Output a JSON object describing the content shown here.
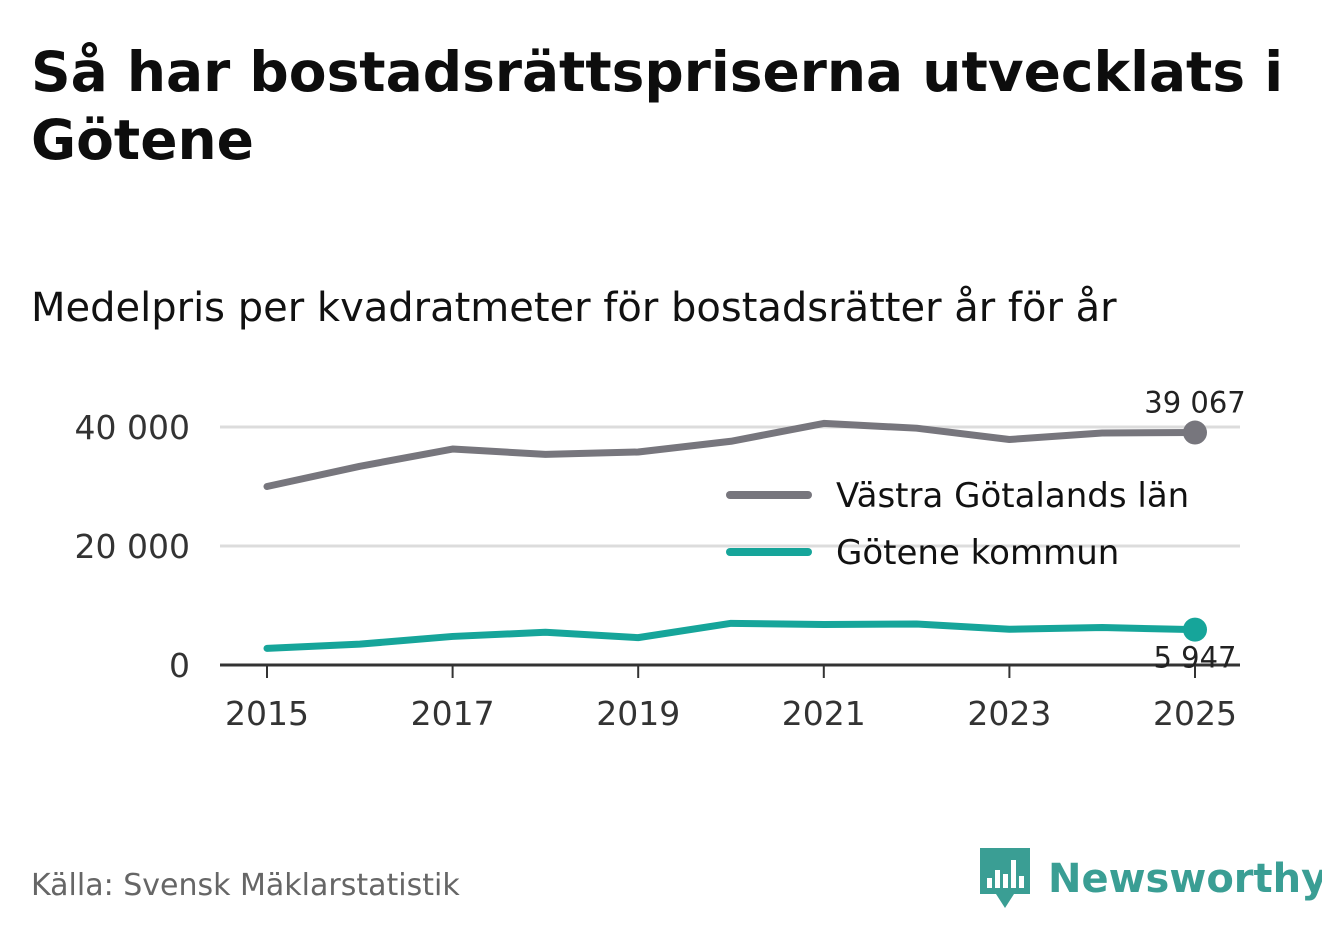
{
  "title": "Så har bostadsrättspriserna utvecklats i Götene",
  "subtitle": "Medelpris per kvadratmeter för bostadsrätter år för år",
  "source": "Källa: Svensk Mäklarstatistik",
  "brand": {
    "name": "Newsworthy",
    "icon": "newsworthy-logo-icon",
    "color": "#3a9e94"
  },
  "chart_data": {
    "type": "line",
    "x": [
      2015,
      2016,
      2017,
      2018,
      2019,
      2020,
      2021,
      2022,
      2023,
      2024,
      2025
    ],
    "x_tick_labels": [
      "2015",
      "2017",
      "2019",
      "2021",
      "2023",
      "2025"
    ],
    "x_ticks": [
      2015,
      2017,
      2019,
      2021,
      2023,
      2025
    ],
    "y_ticks": [
      0,
      20000,
      40000
    ],
    "y_tick_labels": [
      "0",
      "20 000",
      "40 000"
    ],
    "ylim": [
      0,
      40000
    ],
    "grid": true,
    "legend_position": "right-middle",
    "series": [
      {
        "name": "Västra Götalands län",
        "color": "#77767d",
        "values": [
          30000,
          33400,
          36300,
          35400,
          35800,
          37600,
          40600,
          39800,
          37900,
          39000,
          39067
        ],
        "end_label": "39 067"
      },
      {
        "name": "Götene kommun",
        "color": "#16a59a",
        "values": [
          2800,
          3500,
          4800,
          5500,
          4600,
          7000,
          6800,
          6900,
          6000,
          6300,
          5947
        ],
        "end_label": "5 947"
      }
    ]
  }
}
